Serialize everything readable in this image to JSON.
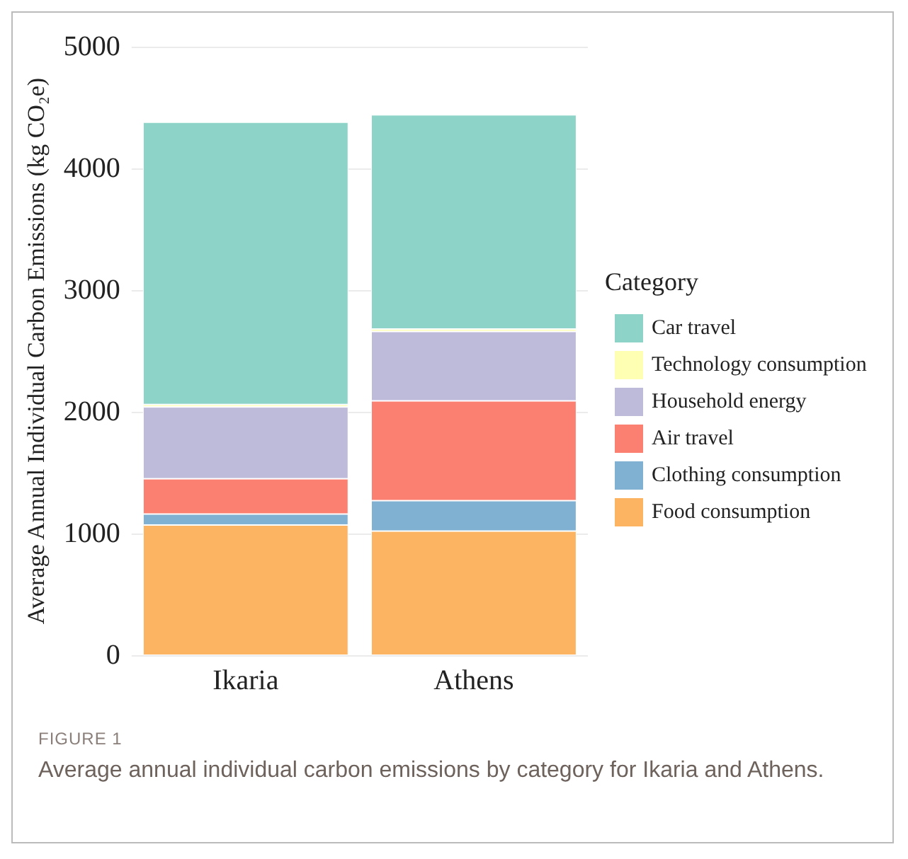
{
  "chart_data": {
    "type": "bar",
    "stacked": true,
    "ylabel": "Average Annual Individual Carbon Emissions (kg CO₂e)",
    "legend_title": "Category",
    "legend": "right",
    "grid": "y",
    "categories": [
      "Ikaria",
      "Athens"
    ],
    "ylim": [
      0,
      5000
    ],
    "yticks": [
      0,
      1000,
      2000,
      3000,
      4000,
      5000
    ],
    "series": [
      {
        "name": "Food consumption",
        "color": "#fdb462",
        "values": [
          1070,
          1020
        ]
      },
      {
        "name": "Clothing consumption",
        "color": "#80b1d3",
        "values": [
          90,
          250
        ]
      },
      {
        "name": "Air travel",
        "color": "#fb8072",
        "values": [
          290,
          820
        ]
      },
      {
        "name": "Household energy",
        "color": "#bebada",
        "values": [
          590,
          570
        ]
      },
      {
        "name": "Technology consumption",
        "color": "#ffffb3",
        "values": [
          20,
          20
        ]
      },
      {
        "name": "Car travel",
        "color": "#8dd3c7",
        "values": [
          2320,
          1760
        ]
      }
    ],
    "annotations": [
      "FIGURE 1",
      "Average annual individual carbon emissions by category for Ikaria and Athens."
    ]
  }
}
